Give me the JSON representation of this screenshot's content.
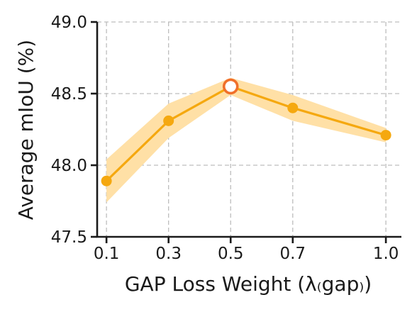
{
  "chart_data": {
    "type": "line",
    "title": "",
    "xlabel": "GAP Loss Weight (λ₍gap₎)",
    "ylabel": "Average mIoU (%)",
    "x": [
      0.1,
      0.3,
      0.5,
      0.7,
      1.0
    ],
    "x_tick_labels": [
      "0.1",
      "0.3",
      "0.5",
      "0.7",
      "1.0"
    ],
    "y_ticks": [
      47.5,
      48.0,
      48.5,
      49.0
    ],
    "y_tick_labels": [
      "47.5",
      "48.0",
      "48.5",
      "49.0"
    ],
    "xlim": [
      0.07,
      1.05
    ],
    "ylim": [
      47.5,
      49.0
    ],
    "grid": true,
    "series": [
      {
        "values": [
          47.89,
          48.31,
          48.55,
          48.4,
          48.21
        ],
        "band_lower": [
          47.74,
          48.19,
          48.49,
          48.31,
          48.16
        ],
        "band_upper": [
          48.04,
          48.43,
          48.61,
          48.49,
          48.26
        ],
        "highlight_index": 2
      }
    ],
    "colors": {
      "line": "#f5a80f",
      "band": "#ffe0a6",
      "highlight_edge": "#f0702a",
      "highlight_fill": "#ffffff",
      "axis": "#1a1a1a",
      "grid": "#bdbdbd"
    }
  }
}
